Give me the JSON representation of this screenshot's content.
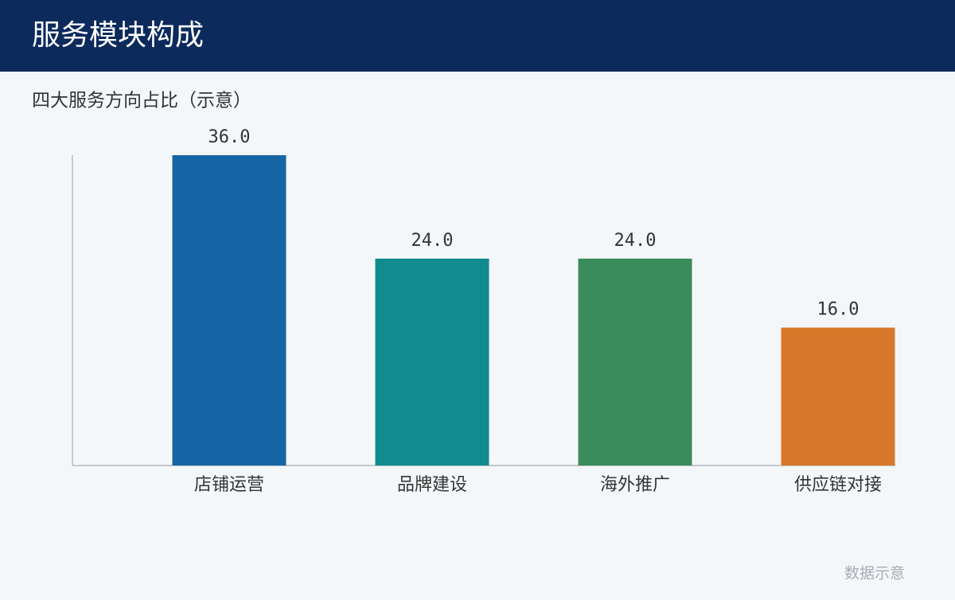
{
  "header": {
    "title": "服务模块构成"
  },
  "chart_data": {
    "type": "bar",
    "title": "四大服务方向占比（示意）",
    "categories": [
      "店铺运营",
      "品牌建设",
      "海外推广",
      "供应链对接"
    ],
    "values": [
      36,
      24,
      24,
      16
    ],
    "value_labels": [
      "36.0",
      "24.0",
      "24.0",
      "16.0"
    ],
    "colors": [
      "#1565a5",
      "#128b8f",
      "#3a8c5a",
      "#d7782b"
    ],
    "ylim": [
      0,
      36
    ]
  },
  "footnote": "数据示意"
}
